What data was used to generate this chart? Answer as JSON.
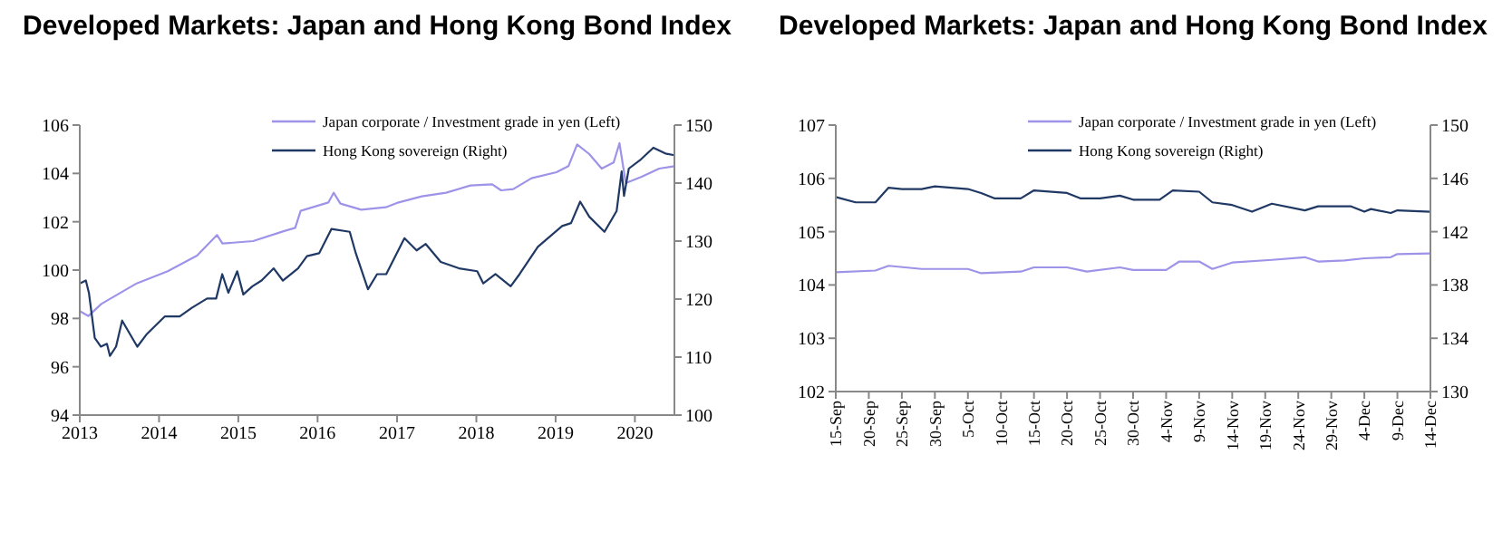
{
  "chart_data": [
    {
      "type": "line",
      "title": "Developed Markets: Japan and Hong Kong Bond Index",
      "legend": "top",
      "xlim": [
        "2013",
        "2020-07-01"
      ],
      "xticks": [
        {
          "value": "2013",
          "label": "2013"
        },
        {
          "value": "2014",
          "label": "2014"
        },
        {
          "value": "2015",
          "label": "2015"
        },
        {
          "value": "2016",
          "label": "2016"
        },
        {
          "value": "2017",
          "label": "2017"
        },
        {
          "value": "2018",
          "label": "2018"
        },
        {
          "value": "2019",
          "label": "2019"
        },
        {
          "value": "2020",
          "label": "2020"
        }
      ],
      "ylim": [
        94,
        106
      ],
      "yticks": [
        94,
        96,
        98,
        100,
        102,
        104,
        106
      ],
      "y2lim": [
        100,
        150
      ],
      "y2ticks": [
        100,
        110,
        120,
        130,
        140,
        150
      ],
      "series": [
        {
          "name": "Japan corporate / Investment grade in yen (Left)",
          "color": "#9d93e8",
          "x": [
            "2013-01-01",
            "2013-02-10",
            "2013-04-10",
            "2013-09-20",
            "2014-02-10",
            "2014-06-25",
            "2014-09-25",
            "2014-10-20",
            "2015-03-10",
            "2015-07-25",
            "2015-09-20",
            "2015-10-15",
            "2016-02-20",
            "2016-03-15",
            "2016-04-15",
            "2016-07-20",
            "2016-11-10",
            "2017-01-08",
            "2017-04-25",
            "2017-08-15",
            "2017-12-05",
            "2018-03-15",
            "2018-04-25",
            "2018-06-20",
            "2018-09-12",
            "2019-01-05",
            "2019-03-01",
            "2019-04-10",
            "2019-06-05",
            "2019-08-01",
            "2019-09-25",
            "2019-10-22",
            "2019-11-20",
            "2020-01-30",
            "2020-04-22",
            "2020-07-01"
          ],
          "values": [
            98.3,
            98.1,
            98.6,
            99.45,
            99.95,
            100.6,
            101.45,
            101.1,
            101.2,
            101.6,
            101.75,
            102.45,
            102.8,
            103.2,
            102.75,
            102.5,
            102.6,
            102.8,
            103.05,
            103.2,
            103.5,
            103.55,
            103.3,
            103.35,
            103.8,
            104.05,
            104.3,
            105.2,
            104.8,
            104.2,
            104.45,
            105.25,
            103.6,
            103.85,
            104.2,
            104.3
          ]
        },
        {
          "name": "Hong Kong sovereign (Right)",
          "color": "#1f3864",
          "axis": "y2",
          "x": [
            "2013-01-01",
            "2013-01-29",
            "2013-02-12",
            "2013-03-11",
            "2013-04-08",
            "2013-05-06",
            "2013-05-20",
            "2013-06-17",
            "2013-07-15",
            "2013-09-23",
            "2013-11-04",
            "2014-01-27",
            "2014-04-06",
            "2014-06-01",
            "2014-08-10",
            "2014-09-21",
            "2014-10-19",
            "2014-11-16",
            "2014-12-27",
            "2015-01-24",
            "2015-03-07",
            "2015-04-18",
            "2015-06-13",
            "2015-07-25",
            "2015-10-03",
            "2015-11-13",
            "2016-01-08",
            "2016-03-05",
            "2016-05-28",
            "2016-06-25",
            "2016-08-20",
            "2016-10-01",
            "2016-11-12",
            "2017-02-04",
            "2017-04-01",
            "2017-05-13",
            "2017-07-21",
            "2017-10-13",
            "2018-01-05",
            "2018-02-02",
            "2018-03-30",
            "2018-06-08",
            "2018-07-19",
            "2018-10-11",
            "2019-01-31",
            "2019-03-13",
            "2019-04-24",
            "2019-06-05",
            "2019-08-14",
            "2019-10-09",
            "2019-11-01",
            "2019-11-12",
            "2019-12-04",
            "2020-01-29",
            "2020-03-26",
            "2020-05-20",
            "2020-07-01"
          ],
          "values": [
            122.7,
            123.2,
            121.1,
            113.3,
            111.8,
            112.3,
            110.2,
            111.8,
            116.3,
            111.8,
            113.9,
            117,
            117,
            118.5,
            120.1,
            120.1,
            124.3,
            121.1,
            124.8,
            120.8,
            122.2,
            123.2,
            125.3,
            123.2,
            125.3,
            127.4,
            127.9,
            132.1,
            131.6,
            127.9,
            121.7,
            124.3,
            124.3,
            130.5,
            128.4,
            129.5,
            126.4,
            125.3,
            124.8,
            122.7,
            124.3,
            122.2,
            124.3,
            129,
            132.6,
            133.1,
            136.8,
            134.2,
            131.6,
            135.2,
            142,
            137.8,
            142.5,
            144.1,
            146.1,
            145.1,
            144.8
          ]
        }
      ]
    },
    {
      "type": "line",
      "title": "Developed Markets: Japan and Hong Kong Bond Index",
      "legend": "top",
      "xlim": [
        "--09-15",
        "--12-14"
      ],
      "xticks": [
        {
          "value": "--09-15",
          "label": "15-Sep"
        },
        {
          "value": "--09-20",
          "label": "20-Sep"
        },
        {
          "value": "--09-25",
          "label": "25-Sep"
        },
        {
          "value": "--09-30",
          "label": "30-Sep"
        },
        {
          "value": "--10-05",
          "label": "5-Oct"
        },
        {
          "value": "--10-10",
          "label": "10-Oct"
        },
        {
          "value": "--10-15",
          "label": "15-Oct"
        },
        {
          "value": "--10-20",
          "label": "20-Oct"
        },
        {
          "value": "--10-25",
          "label": "25-Oct"
        },
        {
          "value": "--10-30",
          "label": "30-Oct"
        },
        {
          "value": "--11-04",
          "label": "4-Nov"
        },
        {
          "value": "--11-09",
          "label": "9-Nov"
        },
        {
          "value": "--11-14",
          "label": "14-Nov"
        },
        {
          "value": "--11-19",
          "label": "19-Nov"
        },
        {
          "value": "--11-24",
          "label": "24-Nov"
        },
        {
          "value": "--11-29",
          "label": "29-Nov"
        },
        {
          "value": "--12-04",
          "label": "4-Dec"
        },
        {
          "value": "--12-09",
          "label": "9-Dec"
        },
        {
          "value": "--12-14",
          "label": "14-Dec"
        }
      ],
      "ylim": [
        102,
        107
      ],
      "yticks": [
        102,
        103,
        104,
        105,
        106,
        107
      ],
      "y2lim": [
        130,
        150
      ],
      "y2ticks": [
        130,
        134,
        138,
        142,
        146,
        150
      ],
      "series": [
        {
          "name": "Japan corporate / Investment grade in yen (Left)",
          "color": "#9d93e8",
          "x": [
            "--09-15",
            "--09-21",
            "--09-23",
            "--09-28",
            "--10-05",
            "--10-07",
            "--10-13",
            "--10-15",
            "--10-20",
            "--10-23",
            "--10-28",
            "--10-30",
            "--11-04",
            "--11-06",
            "--11-09",
            "--11-11",
            "--11-14",
            "--11-20",
            "--11-25",
            "--11-27",
            "--12-01",
            "--12-04",
            "--12-08",
            "--12-09",
            "--12-14"
          ],
          "values": [
            104.24,
            104.27,
            104.36,
            104.3,
            104.3,
            104.22,
            104.25,
            104.33,
            104.33,
            104.25,
            104.33,
            104.28,
            104.28,
            104.44,
            104.44,
            104.3,
            104.42,
            104.47,
            104.52,
            104.44,
            104.46,
            104.5,
            104.52,
            104.58,
            104.59
          ]
        },
        {
          "name": "Hong Kong sovereign (Right)",
          "color": "#1f3864",
          "axis": "y2",
          "x": [
            "--09-15",
            "--09-18",
            "--09-21",
            "--09-23",
            "--09-25",
            "--09-28",
            "--09-30",
            "--10-05",
            "--10-07",
            "--10-09",
            "--10-13",
            "--10-15",
            "--10-20",
            "--10-22",
            "--10-25",
            "--10-28",
            "--10-30",
            "--11-03",
            "--11-05",
            "--11-09",
            "--11-11",
            "--11-14",
            "--11-17",
            "--11-20",
            "--11-25",
            "--11-27",
            "--12-02",
            "--12-04",
            "--12-05",
            "--12-08",
            "--12-09",
            "--12-14"
          ],
          "values": [
            144.6,
            144.2,
            144.2,
            145.3,
            145.2,
            145.2,
            145.4,
            145.2,
            144.9,
            144.5,
            144.5,
            145.1,
            144.9,
            144.5,
            144.5,
            144.7,
            144.4,
            144.4,
            145.1,
            145.0,
            144.2,
            144.0,
            143.5,
            144.1,
            143.6,
            143.9,
            143.9,
            143.5,
            143.7,
            143.4,
            143.6,
            143.5
          ]
        }
      ]
    }
  ]
}
